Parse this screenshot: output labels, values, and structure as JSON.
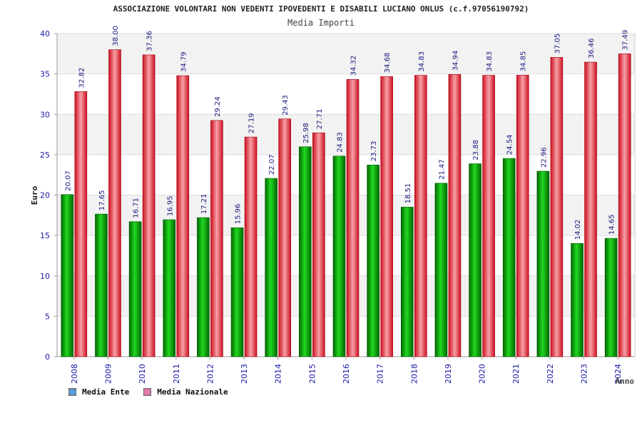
{
  "chart_data": {
    "type": "bar",
    "title": "ASSOCIAZIONE VOLONTARI NON VEDENTI IPOVEDENTI E DISABILI LUCIANO ONLUS (c.f.97056190792)",
    "subtitle": "Media Importi",
    "xlabel": "Anno",
    "ylabel": "Euro",
    "ylim": [
      0,
      40
    ],
    "yticks": [
      0,
      5,
      10,
      15,
      20,
      25,
      30,
      35,
      40
    ],
    "grid": true,
    "legend_position": "bottom-left",
    "categories": [
      "2008",
      "2009",
      "2010",
      "2011",
      "2012",
      "2013",
      "2014",
      "2015",
      "2016",
      "2017",
      "2018",
      "2019",
      "2020",
      "2021",
      "2022",
      "2023",
      "2024"
    ],
    "series": [
      {
        "name": "Media Ente",
        "color": "#00b000",
        "legend_color": "#5b9bd5",
        "values": [
          20.07,
          17.65,
          16.71,
          16.95,
          17.21,
          15.96,
          22.07,
          25.98,
          24.83,
          23.73,
          18.51,
          21.47,
          23.88,
          24.54,
          22.96,
          14.02,
          14.65
        ],
        "labels": [
          "20.07",
          "17.65",
          "16.71",
          "16.95",
          "17.21",
          "15.96",
          "22.07",
          "25.98",
          "24.83",
          "23.73",
          "18.51",
          "21.47",
          "23.88",
          "24.54",
          "22.96",
          "14.02",
          "14.65"
        ]
      },
      {
        "name": "Media Nazionale",
        "color": "#e8303a",
        "legend_color": "#e07aa8",
        "values": [
          32.82,
          38.0,
          37.36,
          34.79,
          29.24,
          27.19,
          29.43,
          27.71,
          34.32,
          34.68,
          34.83,
          34.94,
          34.83,
          34.85,
          37.05,
          36.46,
          37.49
        ],
        "labels": [
          "32.82",
          "38.00",
          "37.36",
          "34.79",
          "29.24",
          "27.19",
          "29.43",
          "27.71",
          "34.32",
          "34.68",
          "34.83",
          "34.94",
          "34.83",
          "34.85",
          "37.05",
          "36.46",
          "37.49"
        ]
      }
    ]
  }
}
